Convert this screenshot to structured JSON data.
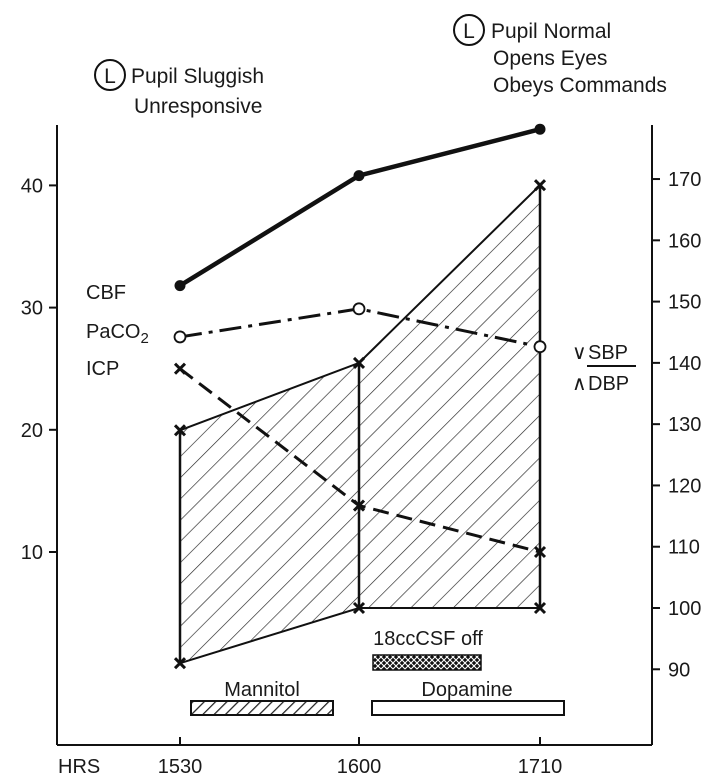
{
  "chart_data": {
    "type": "line",
    "title": "",
    "x_axis": {
      "label": "HRS",
      "categories": [
        "1530",
        "1600",
        "1710"
      ]
    },
    "left_axis": {
      "ticks": [
        "10",
        "20",
        "30",
        "40"
      ],
      "range": [
        0,
        44
      ]
    },
    "right_axis": {
      "ticks": [
        "90",
        "100",
        "110",
        "120",
        "130",
        "140",
        "150",
        "160",
        "170"
      ],
      "range": [
        84,
        179
      ]
    },
    "series": [
      {
        "name": "CBF",
        "axis": "left",
        "style": "solid-filled-dot",
        "values": [
          31.8,
          40.8,
          44.6
        ]
      },
      {
        "name": "PaCO",
        "name_sub": "2",
        "axis": "left",
        "style": "dash-dot-open-circle",
        "values": [
          27.6,
          29.9,
          26.8
        ]
      },
      {
        "name": "ICP",
        "axis": "left",
        "style": "dashed-x",
        "values": [
          25.0,
          13.8,
          10.0
        ]
      },
      {
        "name": "SBP",
        "axis": "right",
        "style": "solid-x",
        "values": [
          129,
          140,
          169
        ]
      },
      {
        "name": "DBP",
        "axis": "right",
        "style": "solid-x",
        "values": [
          91,
          100,
          100
        ]
      }
    ],
    "bp_legend": {
      "upper_symbol": "∨",
      "upper": "SBP",
      "lower_symbol": "∧",
      "lower": "DBP"
    },
    "annotations": {
      "left": {
        "circle": "L",
        "line1": "Pupil Sluggish",
        "line2": "Unresponsive"
      },
      "right": {
        "circle": "L",
        "line1": "Pupil Normal",
        "line2": "Opens Eyes",
        "line3": "Obeys Commands"
      }
    },
    "treatments": [
      {
        "label": "Mannitol",
        "pattern": "diagonal-hatch"
      },
      {
        "label": "18ccCSF off",
        "pattern": "crosshatch"
      },
      {
        "label": "Dopamine",
        "pattern": "open"
      }
    ]
  }
}
